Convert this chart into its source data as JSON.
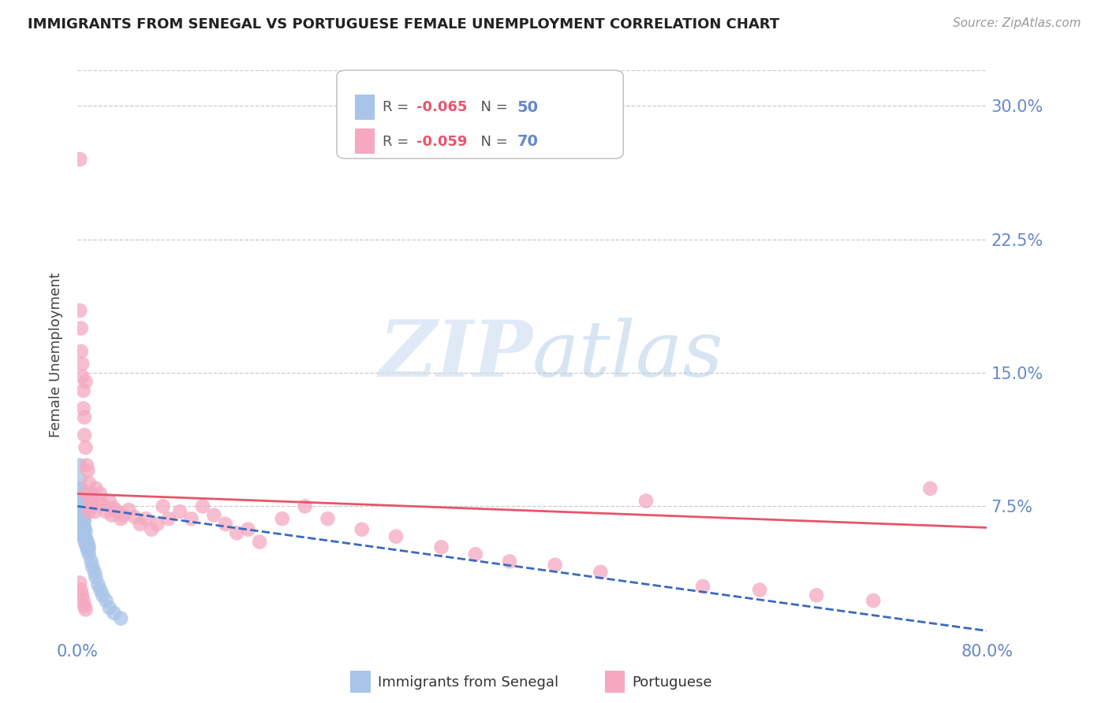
{
  "title": "IMMIGRANTS FROM SENEGAL VS PORTUGUESE FEMALE UNEMPLOYMENT CORRELATION CHART",
  "source": "Source: ZipAtlas.com",
  "ylabel": "Female Unemployment",
  "xlim": [
    0.0,
    0.8
  ],
  "ylim": [
    0.0,
    0.32
  ],
  "y_ticks": [
    0.0,
    0.075,
    0.15,
    0.225,
    0.3
  ],
  "y_tick_labels": [
    "",
    "7.5%",
    "15.0%",
    "22.5%",
    "30.0%"
  ],
  "x_tick_labels": [
    "0.0%",
    "80.0%"
  ],
  "legend1_R": "-0.065",
  "legend1_N": "50",
  "legend2_R": "-0.059",
  "legend2_N": "70",
  "color_blue": "#a8c4e8",
  "color_pink": "#f5a8bf",
  "color_blue_line": "#3a6abf",
  "color_pink_line": "#e8546a",
  "color_axis": "#6688cc",
  "watermark_zip": "ZIP",
  "watermark_atlas": "atlas",
  "background_color": "#ffffff",
  "blue_scatter_x": [
    0.002,
    0.002,
    0.002,
    0.002,
    0.002,
    0.002,
    0.002,
    0.002,
    0.003,
    0.003,
    0.003,
    0.003,
    0.003,
    0.003,
    0.003,
    0.004,
    0.004,
    0.004,
    0.004,
    0.004,
    0.004,
    0.005,
    0.005,
    0.005,
    0.005,
    0.005,
    0.006,
    0.006,
    0.006,
    0.006,
    0.007,
    0.007,
    0.007,
    0.008,
    0.008,
    0.009,
    0.009,
    0.01,
    0.01,
    0.012,
    0.013,
    0.015,
    0.016,
    0.018,
    0.02,
    0.022,
    0.025,
    0.028,
    0.032,
    0.038
  ],
  "blue_scatter_y": [
    0.065,
    0.068,
    0.072,
    0.075,
    0.078,
    0.082,
    0.09,
    0.098,
    0.062,
    0.065,
    0.068,
    0.072,
    0.075,
    0.08,
    0.085,
    0.06,
    0.063,
    0.066,
    0.07,
    0.074,
    0.078,
    0.058,
    0.061,
    0.064,
    0.068,
    0.072,
    0.056,
    0.059,
    0.063,
    0.067,
    0.054,
    0.057,
    0.061,
    0.052,
    0.056,
    0.05,
    0.054,
    0.048,
    0.052,
    0.044,
    0.041,
    0.038,
    0.035,
    0.031,
    0.028,
    0.025,
    0.022,
    0.018,
    0.015,
    0.012
  ],
  "pink_scatter_x": [
    0.002,
    0.002,
    0.003,
    0.003,
    0.004,
    0.004,
    0.005,
    0.005,
    0.006,
    0.006,
    0.007,
    0.007,
    0.008,
    0.008,
    0.009,
    0.01,
    0.01,
    0.011,
    0.012,
    0.013,
    0.015,
    0.016,
    0.018,
    0.02,
    0.022,
    0.025,
    0.028,
    0.03,
    0.032,
    0.035,
    0.038,
    0.04,
    0.045,
    0.05,
    0.055,
    0.06,
    0.065,
    0.07,
    0.075,
    0.08,
    0.09,
    0.1,
    0.11,
    0.12,
    0.13,
    0.14,
    0.15,
    0.16,
    0.18,
    0.2,
    0.22,
    0.25,
    0.28,
    0.32,
    0.35,
    0.38,
    0.42,
    0.46,
    0.5,
    0.55,
    0.6,
    0.65,
    0.7,
    0.75,
    0.002,
    0.003,
    0.004,
    0.005,
    0.006,
    0.007
  ],
  "pink_scatter_y": [
    0.27,
    0.185,
    0.162,
    0.175,
    0.148,
    0.155,
    0.14,
    0.13,
    0.125,
    0.115,
    0.145,
    0.108,
    0.098,
    0.082,
    0.095,
    0.088,
    0.072,
    0.078,
    0.082,
    0.075,
    0.072,
    0.085,
    0.078,
    0.082,
    0.076,
    0.072,
    0.078,
    0.07,
    0.074,
    0.072,
    0.068,
    0.07,
    0.073,
    0.069,
    0.065,
    0.068,
    0.062,
    0.065,
    0.075,
    0.068,
    0.072,
    0.068,
    0.075,
    0.07,
    0.065,
    0.06,
    0.062,
    0.055,
    0.068,
    0.075,
    0.068,
    0.062,
    0.058,
    0.052,
    0.048,
    0.044,
    0.042,
    0.038,
    0.078,
    0.03,
    0.028,
    0.025,
    0.022,
    0.085,
    0.032,
    0.028,
    0.025,
    0.022,
    0.019,
    0.017
  ],
  "blue_trend_x0": 0.0,
  "blue_trend_x1": 0.8,
  "blue_trend_y0": 0.075,
  "blue_trend_y1": 0.005,
  "pink_trend_x0": 0.0,
  "pink_trend_x1": 0.8,
  "pink_trend_y0": 0.082,
  "pink_trend_y1": 0.063
}
